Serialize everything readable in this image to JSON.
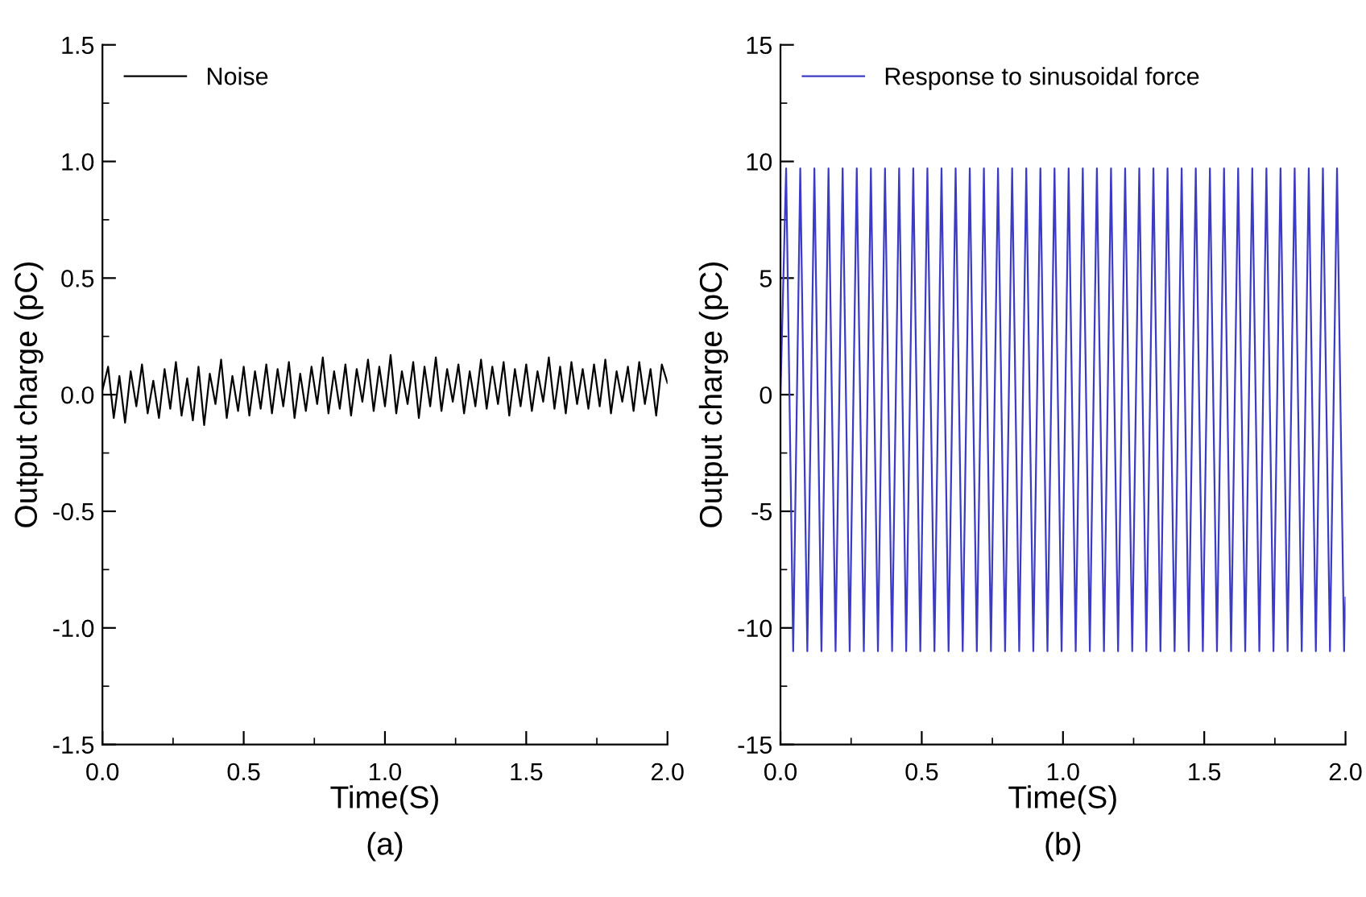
{
  "chart_data": [
    {
      "type": "line",
      "xlabel": "Time(S)",
      "ylabel": "Output charge (pC)",
      "xlim": [
        0.0,
        2.0
      ],
      "ylim": [
        -1.5,
        1.5
      ],
      "xticks": [
        {
          "value": 0,
          "label": "0.0"
        },
        {
          "value": 0.5,
          "label": "0.5"
        },
        {
          "value": 1,
          "label": "1.0"
        },
        {
          "value": 1.5,
          "label": "1.5"
        },
        {
          "value": 2,
          "label": "2.0"
        }
      ],
      "yticks": [
        {
          "value": -1.5,
          "label": "-1.5"
        },
        {
          "value": -1,
          "label": "-1.0"
        },
        {
          "value": -0.5,
          "label": "-0.5"
        },
        {
          "value": 0,
          "label": "0.0"
        },
        {
          "value": 0.5,
          "label": "0.5"
        },
        {
          "value": 1,
          "label": "1.0"
        },
        {
          "value": 1.5,
          "label": "1.5"
        }
      ],
      "legend": "top left",
      "grid": false,
      "annotations": [
        "(a)"
      ],
      "series": [
        {
          "name": "Noise",
          "color": "#000000",
          "x": [
            0,
            0.02,
            0.04,
            0.06,
            0.08,
            0.1,
            0.12,
            0.14,
            0.16,
            0.18,
            0.2,
            0.22,
            0.24,
            0.26,
            0.28,
            0.3,
            0.32,
            0.34,
            0.36,
            0.38,
            0.4,
            0.42,
            0.44,
            0.46,
            0.48,
            0.5,
            0.52,
            0.54,
            0.56,
            0.58,
            0.6,
            0.62,
            0.64,
            0.66,
            0.68,
            0.7,
            0.72,
            0.74,
            0.76,
            0.78,
            0.8,
            0.82,
            0.84,
            0.86,
            0.88,
            0.9,
            0.92,
            0.94,
            0.96,
            0.98,
            1.0,
            1.02,
            1.04,
            1.06,
            1.08,
            1.1,
            1.12,
            1.14,
            1.16,
            1.18,
            1.2,
            1.22,
            1.24,
            1.26,
            1.28,
            1.3,
            1.32,
            1.34,
            1.36,
            1.38,
            1.4,
            1.42,
            1.44,
            1.46,
            1.48,
            1.5,
            1.52,
            1.54,
            1.56,
            1.58,
            1.6,
            1.62,
            1.64,
            1.66,
            1.68,
            1.7,
            1.72,
            1.74,
            1.76,
            1.78,
            1.8,
            1.82,
            1.84,
            1.86,
            1.88,
            1.9,
            1.92,
            1.94,
            1.96,
            1.98,
            2.0
          ],
          "values": [
            0.02,
            0.12,
            -0.1,
            0.08,
            -0.12,
            0.1,
            -0.05,
            0.13,
            -0.08,
            0.06,
            -0.1,
            0.11,
            -0.06,
            0.14,
            -0.09,
            0.07,
            -0.11,
            0.12,
            -0.13,
            0.09,
            -0.04,
            0.15,
            -0.1,
            0.08,
            -0.07,
            0.12,
            -0.09,
            0.1,
            -0.06,
            0.13,
            -0.08,
            0.11,
            -0.05,
            0.14,
            -0.1,
            0.09,
            -0.07,
            0.12,
            -0.04,
            0.16,
            -0.08,
            0.1,
            -0.06,
            0.13,
            -0.09,
            0.11,
            -0.03,
            0.15,
            -0.07,
            0.12,
            -0.05,
            0.17,
            -0.08,
            0.1,
            -0.04,
            0.14,
            -0.1,
            0.12,
            -0.05,
            0.16,
            -0.07,
            0.11,
            -0.03,
            0.13,
            -0.08,
            0.1,
            -0.05,
            0.15,
            -0.06,
            0.12,
            -0.04,
            0.14,
            -0.09,
            0.11,
            -0.05,
            0.13,
            -0.07,
            0.1,
            -0.03,
            0.16,
            -0.06,
            0.12,
            -0.08,
            0.14,
            -0.04,
            0.11,
            -0.06,
            0.13,
            -0.05,
            0.15,
            -0.08,
            0.1,
            -0.03,
            0.12,
            -0.07,
            0.14,
            -0.04,
            0.11,
            -0.09,
            0.13,
            0.05
          ]
        }
      ]
    },
    {
      "type": "line",
      "xlabel": "Time(S)",
      "ylabel": "Output charge (pC)",
      "xlim": [
        0.0,
        2.0
      ],
      "ylim": [
        -15,
        15
      ],
      "xticks": [
        {
          "value": 0,
          "label": "0.0"
        },
        {
          "value": 0.5,
          "label": "0.5"
        },
        {
          "value": 1,
          "label": "1.0"
        },
        {
          "value": 1.5,
          "label": "1.5"
        },
        {
          "value": 2,
          "label": "2.0"
        }
      ],
      "yticks": [
        -15,
        -10,
        -5,
        0,
        5,
        10,
        15
      ],
      "legend": "top left",
      "grid": false,
      "annotations": [
        "(b)"
      ],
      "series": [
        {
          "name": "Response to sinusoidal force",
          "color": "#3b3bc4",
          "x": [
            0,
            0.02,
            0.045,
            0.07,
            0.095,
            0.12,
            0.145,
            0.17,
            0.195,
            0.22,
            0.245,
            0.27,
            0.295,
            0.32,
            0.345,
            0.37,
            0.395,
            0.42,
            0.445,
            0.47,
            0.495,
            0.52,
            0.545,
            0.57,
            0.595,
            0.62,
            0.645,
            0.67,
            0.695,
            0.72,
            0.745,
            0.77,
            0.795,
            0.82,
            0.845,
            0.87,
            0.895,
            0.92,
            0.945,
            0.97,
            0.995,
            1.02,
            1.045,
            1.07,
            1.095,
            1.12,
            1.145,
            1.17,
            1.195,
            1.22,
            1.245,
            1.27,
            1.295,
            1.32,
            1.345,
            1.37,
            1.395,
            1.42,
            1.445,
            1.47,
            1.495,
            1.52,
            1.545,
            1.57,
            1.595,
            1.62,
            1.645,
            1.67,
            1.695,
            1.72,
            1.745,
            1.77,
            1.795,
            1.82,
            1.845,
            1.87,
            1.895,
            1.92,
            1.945,
            1.97,
            1.995,
            2.0
          ],
          "values": [
            0,
            9.7,
            -11,
            9.7,
            -11,
            9.7,
            -11,
            9.7,
            -11,
            9.7,
            -11,
            9.7,
            -11,
            9.7,
            -11,
            9.7,
            -11,
            9.7,
            -11,
            9.7,
            -11,
            9.7,
            -11,
            9.7,
            -11,
            9.7,
            -11,
            9.7,
            -11,
            9.7,
            -11,
            9.7,
            -11,
            9.7,
            -11,
            9.7,
            -11,
            9.7,
            -11,
            9.7,
            -11,
            9.7,
            -11,
            9.7,
            -11,
            9.7,
            -11,
            9.7,
            -11,
            9.7,
            -11,
            9.7,
            -11,
            9.7,
            -11,
            9.7,
            -11,
            9.7,
            -11,
            9.7,
            -11,
            9.7,
            -11,
            9.7,
            -11,
            9.7,
            -11,
            9.7,
            -11,
            9.7,
            -11,
            9.7,
            -11,
            9.7,
            -11,
            9.7,
            -11,
            9.7,
            -11,
            9.7,
            -11,
            -8.7
          ]
        }
      ]
    }
  ]
}
